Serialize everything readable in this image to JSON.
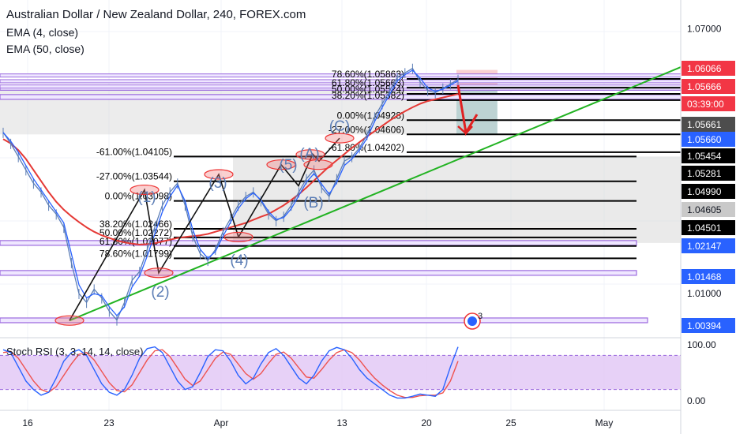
{
  "header": {
    "title": "Australian Dollar / New Zealand Dollar, 240, FOREX.com",
    "indicators": [
      "EMA (4, close)",
      "EMA (50, close)"
    ],
    "oscillator": "Stoch RSI (3, 3, 14, 14, close)"
  },
  "colors": {
    "price_series": "#5b7db5",
    "ema_fast": "#2962ff",
    "ema_slow": "#e53935",
    "trendline": "#22b322",
    "support_lines": "#9c6ade",
    "waves": "#5b7db5",
    "fib_lines": "#000000",
    "fib_band": "#d9d9d9",
    "forecast_arrow": "#e02020",
    "stoch_band": "#e1c6f5",
    "stoch_k": "#2962ff",
    "stoch_d": "#ef5350"
  },
  "chart_data": [
    {
      "type": "line",
      "title": "Australian Dollar / New Zealand Dollar, 240, FOREX.com",
      "ylim": [
        1.0,
        1.0765
      ],
      "y_ticks": [
        1.01,
        1.07
      ],
      "x_ticks": [
        "16",
        "23",
        "Apr",
        "13",
        "20",
        "25",
        "May"
      ],
      "price_labels": [
        {
          "value": "1.06066",
          "color": "#f23645"
        },
        {
          "value": "1.05666",
          "color": "#f23645"
        },
        {
          "value": "03:39:00",
          "color": "#f23645"
        },
        {
          "value": "1.05661",
          "color": "#4d4d4d"
        },
        {
          "value": "1.05660",
          "color": "#2962ff"
        },
        {
          "value": "1.05454",
          "color": "#000000"
        },
        {
          "value": "1.05281",
          "color": "#000000"
        },
        {
          "value": "1.04990",
          "color": "#000000"
        },
        {
          "value": "1.04605",
          "color": "#c9c9c9"
        },
        {
          "value": "1.04501",
          "color": "#000000"
        },
        {
          "value": "1.02147",
          "color": "#2962ff"
        },
        {
          "value": "1.01468",
          "color": "#2962ff"
        },
        {
          "value": "1.00394",
          "color": "#2962ff"
        }
      ],
      "series": [
        {
          "name": "AUDNZD",
          "values": [
            1.0465,
            1.044,
            1.041,
            1.038,
            1.035,
            1.033,
            1.03,
            1.028,
            1.025,
            1.017,
            1.01,
            1.008,
            1.011,
            1.009,
            1.006,
            1.004,
            1.008,
            1.013,
            1.015,
            1.02,
            1.025,
            1.03,
            1.033,
            1.035,
            1.03,
            1.023,
            1.019,
            1.0175,
            1.02,
            1.024,
            1.027,
            1.03,
            1.032,
            1.033,
            1.031,
            1.028,
            1.0265,
            1.0275,
            1.03,
            1.033,
            1.036,
            1.038,
            1.034,
            1.032,
            1.036,
            1.04,
            1.041,
            1.043,
            1.046,
            1.05,
            1.053,
            1.056,
            1.059,
            1.06,
            1.061,
            1.058,
            1.056,
            1.0555,
            1.0565,
            1.0575,
            1.0585
          ]
        },
        {
          "name": "EMA (4, close)",
          "values": [
            1.0465,
            1.0445,
            1.042,
            1.039,
            1.036,
            1.0335,
            1.031,
            1.0285,
            1.026,
            1.019,
            1.012,
            1.009,
            1.01,
            1.0095,
            1.007,
            1.005,
            1.007,
            1.0115,
            1.014,
            1.0185,
            1.0235,
            1.0285,
            1.032,
            1.0345,
            1.031,
            1.0245,
            1.02,
            1.018,
            1.0195,
            1.023,
            1.0262,
            1.0292,
            1.0315,
            1.0328,
            1.0312,
            1.0286,
            1.0268,
            1.0272,
            1.0292,
            1.0322,
            1.0352,
            1.0372,
            1.0348,
            1.0325,
            1.0352,
            1.039,
            1.0405,
            1.0425,
            1.0452,
            1.049,
            1.0522,
            1.0552,
            1.0582,
            1.0596,
            1.0606,
            1.0588,
            1.0566,
            1.0558,
            1.0563,
            1.0572,
            1.0582
          ]
        },
        {
          "name": "EMA (50, close)",
          "values": [
            1.045,
            1.044,
            1.0425,
            1.0405,
            1.038,
            1.0355,
            1.033,
            1.0308,
            1.029,
            1.0275,
            1.0262,
            1.025,
            1.024,
            1.0232,
            1.0226,
            1.022,
            1.0216,
            1.0213,
            1.0211,
            1.0212,
            1.0214,
            1.0218,
            1.0222,
            1.0226,
            1.0228,
            1.023,
            1.0232,
            1.0235,
            1.024,
            1.0245,
            1.025,
            1.0255,
            1.026,
            1.0267,
            1.0274,
            1.028,
            1.029,
            1.03,
            1.0312,
            1.0325,
            1.034,
            1.0356,
            1.0372,
            1.0388,
            1.0402,
            1.0416,
            1.043,
            1.0443,
            1.0456,
            1.0468,
            1.048,
            1.0492,
            1.0503,
            1.0513,
            1.0522,
            1.053,
            1.0536,
            1.054,
            1.0544,
            1.0548,
            1.0552
          ]
        }
      ],
      "support_levels": [
        1.0566,
        1.05454,
        1.02147,
        1.01468,
        1.00394
      ],
      "fib_upper": [
        {
          "label": "78.60%(1.05863)",
          "value": 1.05863
        },
        {
          "label": "61.80%(1.05663)",
          "value": 1.05663
        },
        {
          "label": "50.00%(1.05524)",
          "value": 1.05524
        },
        {
          "label": "38.20%(1.05382)",
          "value": 1.05382
        },
        {
          "label": "0.00%(1.04928)",
          "value": 1.04928
        },
        {
          "label": "-27.00%(1.04606)",
          "value": 1.04606
        },
        {
          "label": "-61.80%(1.04202)",
          "value": 1.04202
        }
      ],
      "fib_lower": [
        {
          "label": "-61.00%(1.04105)",
          "value": 1.04105
        },
        {
          "label": "-27.00%(1.03544)",
          "value": 1.03544
        },
        {
          "label": "0.00%(1.03098)",
          "value": 1.03098
        },
        {
          "label": "38.20%(1.02466)",
          "value": 1.02466
        },
        {
          "label": "50.00%(1.02272)",
          "value": 1.02272
        },
        {
          "label": "61.80%(1.02077)",
          "value": 1.02077
        },
        {
          "label": "78.60%(1.01799)",
          "value": 1.01799
        }
      ],
      "wave_labels": [
        "(1)",
        "(2)",
        "(3)",
        "(4)",
        "(5)",
        "(A)",
        "(B)",
        "(C)"
      ],
      "annotations": [
        "3"
      ]
    },
    {
      "type": "line",
      "title": "Stoch RSI (3, 3, 14, 14, close)",
      "ylim": [
        0,
        100
      ],
      "y_ticks": [
        "100.00",
        "0.00"
      ],
      "band": [
        20,
        80
      ],
      "series": [
        {
          "name": "K",
          "values": [
            90,
            85,
            60,
            35,
            20,
            10,
            15,
            40,
            70,
            85,
            90,
            80,
            55,
            30,
            15,
            10,
            20,
            45,
            75,
            92,
            95,
            85,
            60,
            35,
            20,
            25,
            50,
            78,
            90,
            88,
            70,
            45,
            30,
            40,
            65,
            85,
            92,
            80,
            60,
            40,
            30,
            45,
            70,
            88,
            94,
            90,
            75,
            55,
            40,
            30,
            20,
            10,
            5,
            5,
            8,
            12,
            10,
            8,
            20,
            60,
            95
          ]
        },
        {
          "name": "D",
          "values": [
            85,
            87,
            75,
            55,
            35,
            20,
            15,
            25,
            45,
            65,
            82,
            85,
            72,
            52,
            32,
            18,
            16,
            28,
            50,
            72,
            88,
            90,
            78,
            58,
            38,
            27,
            35,
            55,
            75,
            86,
            82,
            65,
            48,
            38,
            48,
            66,
            82,
            86,
            75,
            58,
            42,
            40,
            55,
            72,
            85,
            90,
            85,
            72,
            55,
            40,
            28,
            18,
            10,
            6,
            6,
            9,
            10,
            10,
            14,
            35,
            70
          ]
        }
      ]
    }
  ]
}
